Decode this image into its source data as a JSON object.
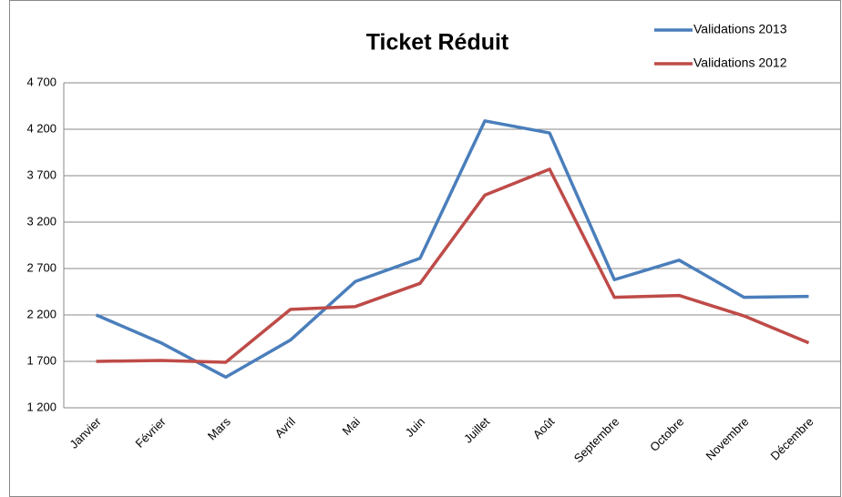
{
  "chart_data": {
    "type": "line",
    "title": "Ticket Réduit",
    "categories": [
      "Janvier",
      "Février",
      "Mars",
      "Avril",
      "Mai",
      "Juin",
      "Juillet",
      "Août",
      "Septembre",
      "Octobre",
      "Novembre",
      "Décembre"
    ],
    "series": [
      {
        "name": "Validations 2013",
        "color": "#4a7ebb",
        "values": [
          2200,
          1900,
          1530,
          1930,
          2560,
          2810,
          4290,
          4160,
          2580,
          2790,
          2390,
          2400
        ]
      },
      {
        "name": "Validations 2012",
        "color": "#be4b48",
        "values": [
          1700,
          1710,
          1690,
          2260,
          2290,
          2540,
          3490,
          3770,
          2390,
          2410,
          2190,
          1900
        ]
      }
    ],
    "ylim": [
      1200,
      4700
    ],
    "yticks": [
      {
        "value": 1200,
        "label": "1 200"
      },
      {
        "value": 1700,
        "label": "1 700"
      },
      {
        "value": 2200,
        "label": "2 200"
      },
      {
        "value": 2700,
        "label": "2 700"
      },
      {
        "value": 3200,
        "label": "3 200"
      },
      {
        "value": 3700,
        "label": "3 700"
      },
      {
        "value": 4200,
        "label": "4 200"
      },
      {
        "value": 4700,
        "label": "4 700"
      }
    ],
    "grid": true,
    "legend": "top-right"
  }
}
